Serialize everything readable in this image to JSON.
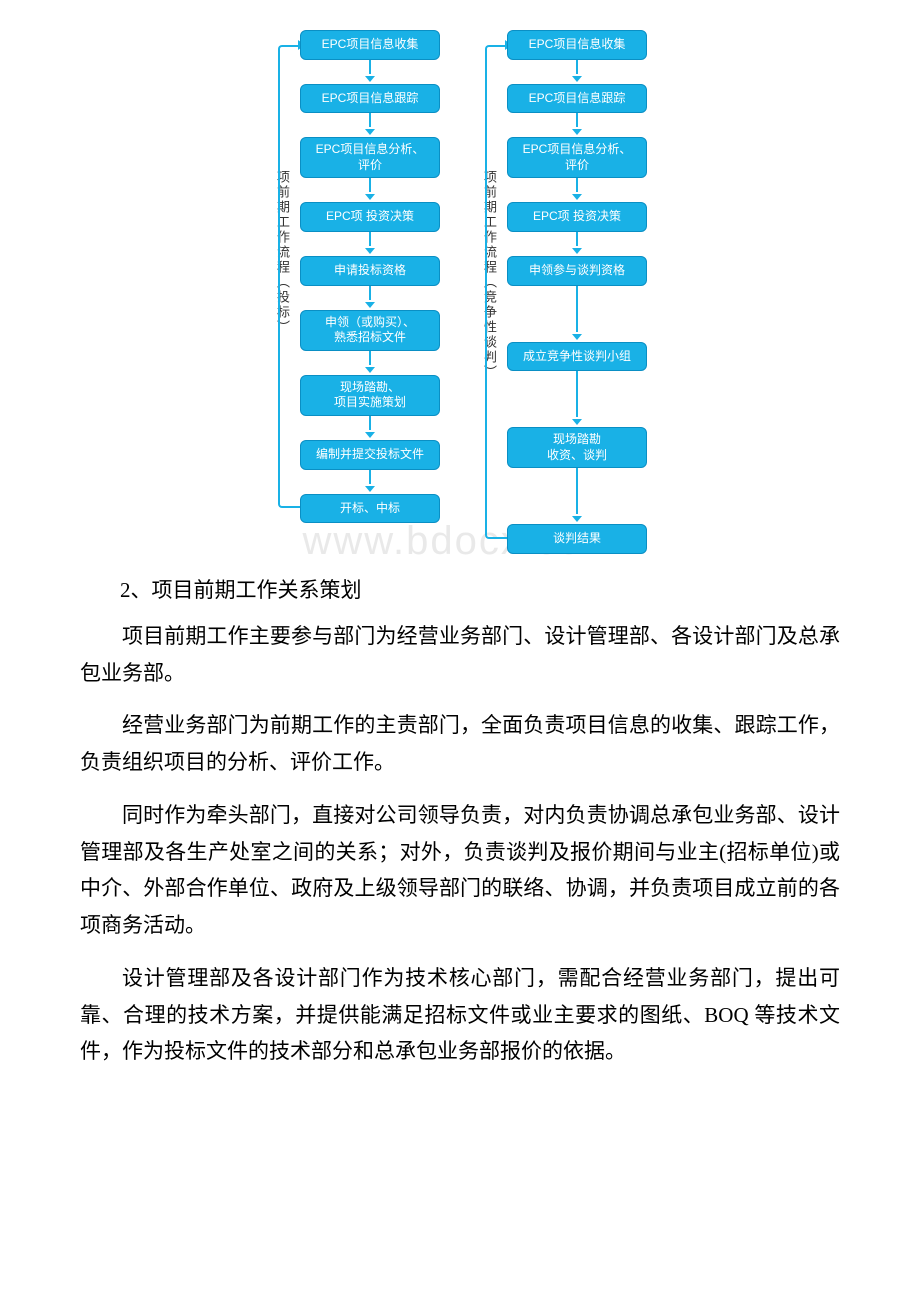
{
  "flow_left": {
    "label": "项前期工作流程（投标）",
    "nodes": [
      "EPC项目信息收集",
      "EPC项目信息跟踪",
      "EPC项目信息分析、\n评价",
      "EPC项 投资决策",
      "申请投标资格",
      "申领（或购买）、\n熟悉招标文件",
      "现场踏勘、\n项目实施策划",
      "编制并提交投标文件",
      "开标、中标"
    ],
    "node_fill": "#19b1e6",
    "node_border": "#0a8fc4",
    "arrow_color": "#19b1e6",
    "loop_color": "#19b1e6",
    "node_fontsize": 12,
    "label_fontsize": 13
  },
  "flow_right": {
    "label": "项前期工作流程（竞争性谈判）",
    "nodes": [
      "EPC项目信息收集",
      "EPC项目信息跟踪",
      "EPC项目信息分析、\n评价",
      "EPC项 投资决策",
      "申领参与谈判资格",
      "成立竞争性谈判小组",
      "现场踏勘\n收资、谈判",
      "谈判结果"
    ],
    "node_fill": "#19b1e6",
    "node_border": "#0a8fc4",
    "arrow_color": "#19b1e6",
    "loop_color": "#19b1e6",
    "node_fontsize": 12,
    "label_fontsize": 13
  },
  "watermark": "www.bdocx.com",
  "heading": "2、项目前期工作关系策划",
  "paragraphs": [
    "项目前期工作主要参与部门为经营业务部门、设计管理部、各设计部门及总承包业务部。",
    "经营业务部门为前期工作的主责部门，全面负责项目信息的收集、跟踪工作，负责组织项目的分析、评价工作。",
    "同时作为牵头部门，直接对公司领导负责，对内负责协调总承包业务部、设计管理部及各生产处室之间的关系；对外，负责谈判及报价期间与业主(招标单位)或中介、外部合作单位、政府及上级领导部门的联络、协调，并负责项目成立前的各项商务活动。",
    "设计管理部及各设计部门作为技术核心部门，需配合经营业务部门，提出可靠、合理的技术方案，并提供能满足招标文件或业主要求的图纸、BOQ 等技术文件，作为投标文件的技术部分和总承包业务部报价的依据。"
  ],
  "text_color": "#000000",
  "body_fontsize": 21,
  "background_color": "#ffffff"
}
